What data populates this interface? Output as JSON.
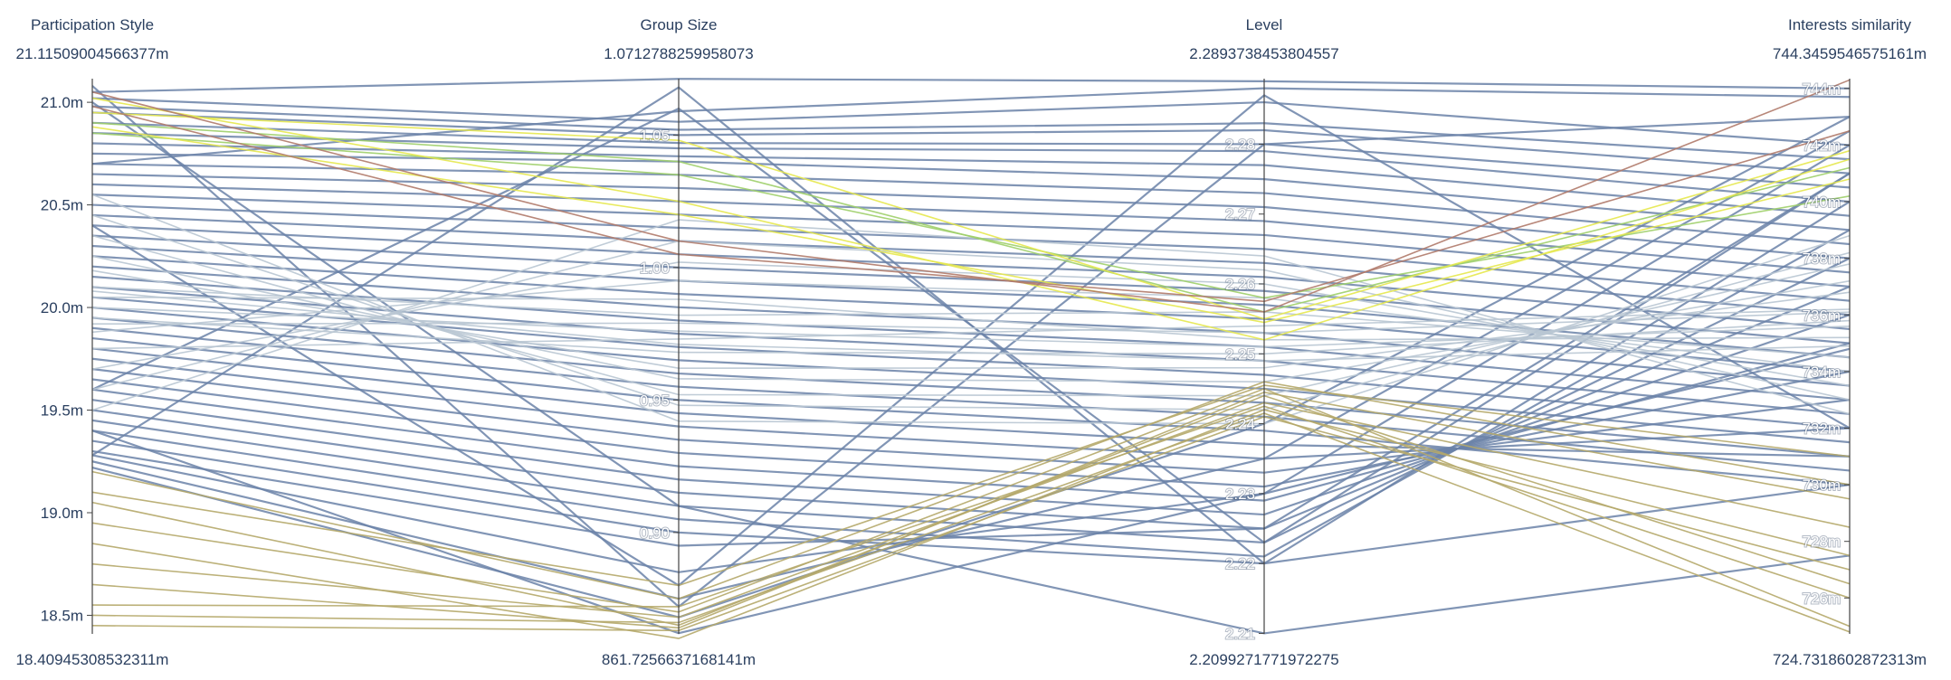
{
  "chart_data": {
    "type": "parcoords",
    "dimensions": [
      {
        "label": "Participation Style",
        "range": [
          0.01840945308532311,
          0.02111509004566377
        ],
        "range_labels": {
          "max": "21.11509004566377m",
          "min": "18.40945308532311m"
        },
        "ticks": [
          {
            "value": 0.0185,
            "label": "18.5m"
          },
          {
            "value": 0.019,
            "label": "19.0m"
          },
          {
            "value": 0.0195,
            "label": "19.5m"
          },
          {
            "value": 0.02,
            "label": "20.0m"
          },
          {
            "value": 0.0205,
            "label": "20.5m"
          },
          {
            "value": 0.021,
            "label": "21.0m"
          }
        ]
      },
      {
        "label": "Group Size",
        "range": [
          0.8617256637168141,
          1.0712788259958073
        ],
        "range_labels": {
          "max": "1.0712788259958073",
          "min": "861.7256637168141m"
        },
        "ticks": [
          {
            "value": 0.9,
            "label": "0.90"
          },
          {
            "value": 0.95,
            "label": "0.95"
          },
          {
            "value": 1.0,
            "label": "1.00"
          },
          {
            "value": 1.05,
            "label": "1.05"
          }
        ]
      },
      {
        "label": "Level",
        "range": [
          2.2099271771972275,
          2.2893738453804557
        ],
        "range_labels": {
          "max": "2.2893738453804557",
          "min": "2.2099271771972275"
        },
        "ticks": [
          {
            "value": 2.21,
            "label": "2.21"
          },
          {
            "value": 2.22,
            "label": "2.22"
          },
          {
            "value": 2.23,
            "label": "2.23"
          },
          {
            "value": 2.24,
            "label": "2.24"
          },
          {
            "value": 2.25,
            "label": "2.25"
          },
          {
            "value": 2.26,
            "label": "2.26"
          },
          {
            "value": 2.27,
            "label": "2.27"
          },
          {
            "value": 2.28,
            "label": "2.28"
          }
        ]
      },
      {
        "label": "Interests similarity",
        "range": [
          0.7247318602872314,
          0.7443459546575161
        ],
        "range_labels": {
          "max": "744.3459546575161m",
          "min": "724.7318602872313m"
        },
        "ticks": [
          {
            "value": 0.726,
            "label": "726m"
          },
          {
            "value": 0.728,
            "label": "728m"
          },
          {
            "value": 0.73,
            "label": "730m"
          },
          {
            "value": 0.732,
            "label": "732m"
          },
          {
            "value": 0.734,
            "label": "734m"
          },
          {
            "value": 0.736,
            "label": "736m"
          },
          {
            "value": 0.738,
            "label": "738m"
          },
          {
            "value": 0.74,
            "label": "740m"
          },
          {
            "value": 0.742,
            "label": "742m"
          },
          {
            "value": 0.744,
            "label": "744m"
          }
        ]
      }
    ],
    "colors": {
      "main": "#6b82a8",
      "light": "#b9c7d3",
      "khaki": "#b5a86a",
      "yellow": "#e6e84e",
      "green": "#9fcf6a",
      "brown": "#b07a6a"
    },
    "records": [
      {
        "values": [
          0.02105,
          1.0712,
          2.289,
          0.744
        ],
        "color": "main"
      },
      {
        "values": [
          0.02102,
          1.055,
          2.286,
          0.742
        ],
        "color": "main"
      },
      {
        "values": [
          0.02098,
          1.052,
          2.283,
          0.7415
        ],
        "color": "main"
      },
      {
        "values": [
          0.02095,
          1.05,
          2.282,
          0.741
        ],
        "color": "main"
      },
      {
        "values": [
          0.0209,
          1.047,
          2.28,
          0.7405
        ],
        "color": "main"
      },
      {
        "values": [
          0.02085,
          1.045,
          2.279,
          0.74
        ],
        "color": "main"
      },
      {
        "values": [
          0.0208,
          1.042,
          2.277,
          0.7395
        ],
        "color": "main"
      },
      {
        "values": [
          0.02075,
          1.04,
          2.275,
          0.739
        ],
        "color": "main"
      },
      {
        "values": [
          0.0207,
          1.035,
          2.273,
          0.7385
        ],
        "color": "main"
      },
      {
        "values": [
          0.02065,
          1.03,
          2.271,
          0.738
        ],
        "color": "main"
      },
      {
        "values": [
          0.0206,
          1.025,
          2.269,
          0.7375
        ],
        "color": "main"
      },
      {
        "values": [
          0.02055,
          1.02,
          2.267,
          0.737
        ],
        "color": "main"
      },
      {
        "values": [
          0.0205,
          1.015,
          2.265,
          0.7365
        ],
        "color": "main"
      },
      {
        "values": [
          0.02045,
          1.01,
          2.263,
          0.736
        ],
        "color": "main"
      },
      {
        "values": [
          0.0204,
          1.005,
          2.261,
          0.7355
        ],
        "color": "main"
      },
      {
        "values": [
          0.02035,
          1.0,
          2.259,
          0.735
        ],
        "color": "main"
      },
      {
        "values": [
          0.0203,
          0.995,
          2.257,
          0.7345
        ],
        "color": "main"
      },
      {
        "values": [
          0.02025,
          0.99,
          2.255,
          0.734
        ],
        "color": "main"
      },
      {
        "values": [
          0.0202,
          0.985,
          2.253,
          0.7335
        ],
        "color": "main"
      },
      {
        "values": [
          0.02015,
          0.98,
          2.251,
          0.733
        ],
        "color": "main"
      },
      {
        "values": [
          0.0201,
          0.975,
          2.249,
          0.7325
        ],
        "color": "main"
      },
      {
        "values": [
          0.02005,
          0.97,
          2.247,
          0.732
        ],
        "color": "main"
      },
      {
        "values": [
          0.02,
          0.965,
          2.245,
          0.7315
        ],
        "color": "main"
      },
      {
        "values": [
          0.01995,
          0.96,
          2.243,
          0.731
        ],
        "color": "main"
      },
      {
        "values": [
          0.0199,
          0.955,
          2.241,
          0.7305
        ],
        "color": "main"
      },
      {
        "values": [
          0.01985,
          0.95,
          2.239,
          0.73
        ],
        "color": "main"
      },
      {
        "values": [
          0.0198,
          0.945,
          2.237,
          0.731
        ],
        "color": "main"
      },
      {
        "values": [
          0.01975,
          0.94,
          2.235,
          0.732
        ],
        "color": "main"
      },
      {
        "values": [
          0.0197,
          0.935,
          2.233,
          0.733
        ],
        "color": "main"
      },
      {
        "values": [
          0.01965,
          0.93,
          2.231,
          0.734
        ],
        "color": "main"
      },
      {
        "values": [
          0.0196,
          0.925,
          2.229,
          0.735
        ],
        "color": "main"
      },
      {
        "values": [
          0.01955,
          0.92,
          2.227,
          0.736
        ],
        "color": "main"
      },
      {
        "values": [
          0.0195,
          0.915,
          2.225,
          0.737
        ],
        "color": "main"
      },
      {
        "values": [
          0.01945,
          0.91,
          2.223,
          0.738
        ],
        "color": "main"
      },
      {
        "values": [
          0.0194,
          0.905,
          2.221,
          0.739
        ],
        "color": "main"
      },
      {
        "values": [
          0.01935,
          0.9,
          2.22,
          0.74
        ],
        "color": "main"
      },
      {
        "values": [
          0.0193,
          0.895,
          2.225,
          0.741
        ],
        "color": "main"
      },
      {
        "values": [
          0.01928,
          0.885,
          2.23,
          0.742
        ],
        "color": "main"
      },
      {
        "values": [
          0.01925,
          0.875,
          2.235,
          0.7425
        ],
        "color": "main"
      },
      {
        "values": [
          0.01922,
          0.868,
          2.24,
          0.743
        ],
        "color": "main"
      },
      {
        "values": [
          0.02108,
          0.872,
          2.28,
          0.743
        ],
        "color": "main"
      },
      {
        "values": [
          0.01928,
          1.068,
          2.22,
          0.73
        ],
        "color": "main"
      },
      {
        "values": [
          0.0204,
          0.88,
          2.287,
          0.732
        ],
        "color": "main"
      },
      {
        "values": [
          0.0196,
          1.06,
          2.223,
          0.741
        ],
        "color": "main"
      },
      {
        "values": [
          0.021,
          0.91,
          2.21,
          0.7275
        ],
        "color": "main"
      },
      {
        "values": [
          0.0194,
          0.862,
          2.23,
          0.7348
        ],
        "color": "main"
      },
      {
        "values": [
          0.0207,
          1.059,
          2.288,
          0.7437
        ],
        "color": "main"
      },
      {
        "values": [
          0.0198,
          0.973,
          2.254,
          0.7362
        ],
        "color": "light"
      },
      {
        "values": [
          0.0201,
          0.982,
          2.256,
          0.7345
        ],
        "color": "light"
      },
      {
        "values": [
          0.01995,
          0.968,
          2.25,
          0.7358
        ],
        "color": "light"
      },
      {
        "values": [
          0.02005,
          0.988,
          2.252,
          0.7352
        ],
        "color": "light"
      },
      {
        "values": [
          0.02018,
          0.962,
          2.248,
          0.7368
        ],
        "color": "light"
      },
      {
        "values": [
          0.01988,
          0.995,
          2.258,
          0.734
        ],
        "color": "light"
      },
      {
        "values": [
          0.02025,
          0.958,
          2.246,
          0.7372
        ],
        "color": "light"
      },
      {
        "values": [
          0.0197,
          1.002,
          2.26,
          0.7335
        ],
        "color": "light"
      },
      {
        "values": [
          0.02035,
          0.952,
          2.244,
          0.7378
        ],
        "color": "light"
      },
      {
        "values": [
          0.0196,
          1.01,
          2.262,
          0.733
        ],
        "color": "light"
      },
      {
        "values": [
          0.02045,
          0.948,
          2.242,
          0.7382
        ],
        "color": "light"
      },
      {
        "values": [
          0.0195,
          1.018,
          2.264,
          0.7325
        ],
        "color": "light"
      },
      {
        "values": [
          0.02055,
          0.942,
          2.24,
          0.7388
        ],
        "color": "light"
      },
      {
        "values": [
          0.02,
          0.976,
          2.251,
          0.7356
        ],
        "color": "light"
      },
      {
        "values": [
          0.01992,
          0.979,
          2.253,
          0.7361
        ],
        "color": "light"
      },
      {
        "values": [
          0.02008,
          0.971,
          2.249,
          0.7349
        ],
        "color": "light"
      },
      {
        "values": [
          0.02102,
          1.025,
          2.252,
          0.7415
        ],
        "color": "yellow"
      },
      {
        "values": [
          0.02095,
          1.048,
          2.255,
          0.7418
        ],
        "color": "yellow"
      },
      {
        "values": [
          0.0209,
          1.04,
          2.256,
          0.7412
        ],
        "color": "green"
      },
      {
        "values": [
          0.02085,
          1.035,
          2.258,
          0.7402
        ],
        "color": "green"
      },
      {
        "values": [
          0.02088,
          1.02,
          2.2545,
          0.7408
        ],
        "color": "yellow"
      },
      {
        "values": [
          0.01905,
          0.865,
          2.244,
          0.7265
        ],
        "color": "khaki"
      },
      {
        "values": [
          0.01895,
          0.87,
          2.245,
          0.725
        ],
        "color": "khaki"
      },
      {
        "values": [
          0.01885,
          0.86,
          2.242,
          0.7275
        ],
        "color": "khaki"
      },
      {
        "values": [
          0.01875,
          0.868,
          2.243,
          0.7285
        ],
        "color": "khaki"
      },
      {
        "values": [
          0.01865,
          0.864,
          2.2445,
          0.7295
        ],
        "color": "khaki"
      },
      {
        "values": [
          0.01855,
          0.872,
          2.2425,
          0.726
        ],
        "color": "khaki"
      },
      {
        "values": [
          0.0185,
          0.866,
          2.2415,
          0.7248
        ],
        "color": "khaki"
      },
      {
        "values": [
          0.0192,
          0.875,
          2.246,
          0.73
        ],
        "color": "khaki"
      },
      {
        "values": [
          0.0191,
          0.88,
          2.2455,
          0.731
        ],
        "color": "khaki"
      },
      {
        "values": [
          0.01845,
          0.863,
          2.241,
          0.727
        ],
        "color": "khaki"
      },
      {
        "values": [
          0.02105,
          1.01,
          2.256,
          0.7443
        ],
        "color": "brown"
      },
      {
        "values": [
          0.02098,
          1.005,
          2.2575,
          0.7425
        ],
        "color": "brown"
      }
    ]
  }
}
